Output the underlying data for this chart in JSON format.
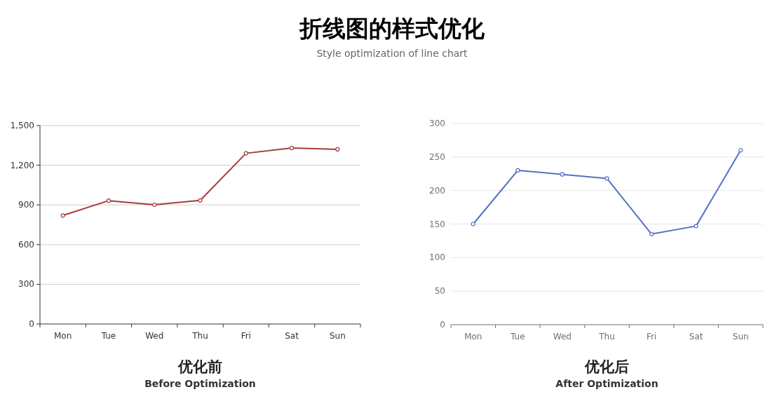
{
  "chart_data": [
    {
      "type": "line",
      "title": "优化前",
      "subtitle": "Before Optimization",
      "annotations": [
        "折线图的样式优化",
        "Style optimization of line chart"
      ],
      "categories": [
        "Mon",
        "Tue",
        "Wed",
        "Thu",
        "Fri",
        "Sat",
        "Sun"
      ],
      "series": [
        {
          "color": "#a83b3b",
          "values": [
            820,
            932,
            901,
            934,
            1290,
            1330,
            1320
          ]
        }
      ],
      "ylim": [
        0,
        1500
      ],
      "yticks": [
        0,
        300,
        600,
        900,
        {
          "value": 1200,
          "label": "1,200"
        },
        {
          "value": 1500,
          "label": "1,500"
        }
      ],
      "grid": "y",
      "marker": "circle",
      "line_style": "solid"
    },
    {
      "type": "line",
      "title": "优化后",
      "subtitle": "After Optimization",
      "categories": [
        "Mon",
        "Tue",
        "Wed",
        "Thu",
        "Fri",
        "Sat",
        "Sun"
      ],
      "series": [
        {
          "color": "#5470c6",
          "values": [
            150,
            230,
            224,
            218,
            135,
            147,
            260
          ]
        }
      ],
      "ylim": [
        0,
        300
      ],
      "yticks": [
        0,
        50,
        100,
        150,
        200,
        250,
        300
      ],
      "grid": "y",
      "marker": "circle",
      "line_style": "solid"
    }
  ]
}
